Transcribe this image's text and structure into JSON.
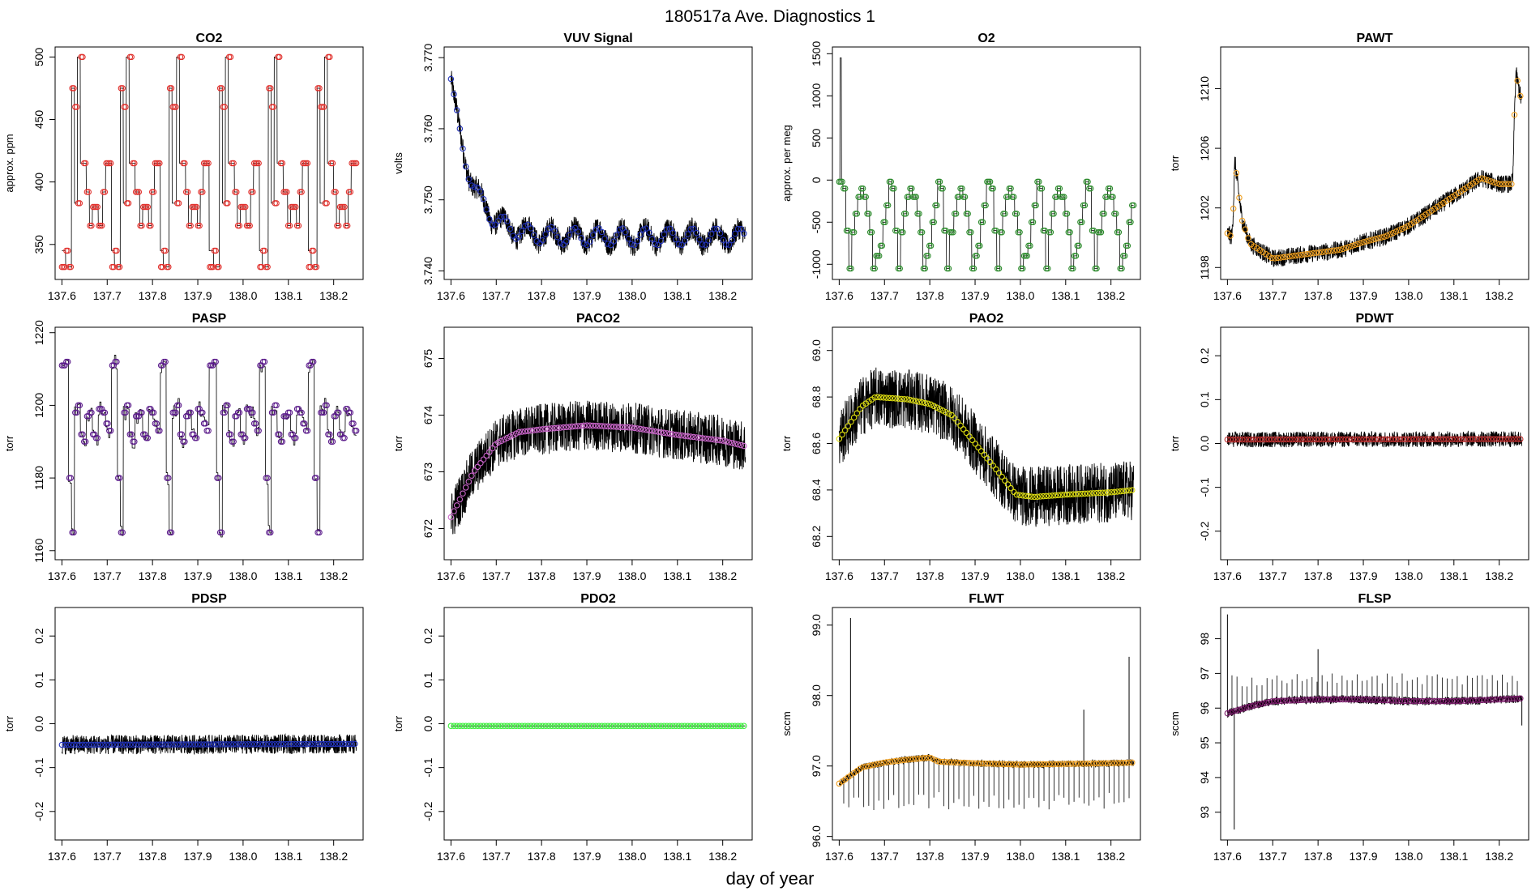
{
  "figure": {
    "title": "180517a   Ave. Diagnostics 1",
    "xlabel": "day of year"
  },
  "chart_data": [
    {
      "type": "line",
      "title": "CO2",
      "ylabel": "approx. ppm",
      "xlim": [
        137.585,
        138.265
      ],
      "ylim": [
        322,
        508
      ],
      "xticks": [
        "137.6",
        "137.7",
        "137.8",
        "137.9",
        "138.0",
        "138.1",
        "138.2"
      ],
      "yticks": [
        "350",
        "400",
        "450",
        "500"
      ],
      "marker_color": "#e0302c",
      "pattern": "cycle",
      "cycle": [
        345,
        332,
        332,
        475,
        383,
        500,
        415,
        415,
        392,
        365,
        380,
        380,
        365,
        392,
        415,
        415
      ],
      "avg": [
        332,
        345,
        332,
        475,
        460,
        383,
        500,
        415,
        392,
        365,
        380,
        380,
        365,
        392,
        415,
        415
      ]
    },
    {
      "type": "line",
      "title": "VUV Signal",
      "ylabel": "volts",
      "xlim": [
        137.585,
        138.265
      ],
      "ylim": [
        3.7388,
        3.7715
      ],
      "xticks": [
        "137.6",
        "137.7",
        "137.8",
        "137.9",
        "138.0",
        "138.1",
        "138.2"
      ],
      "yticks": [
        "3.740",
        "3.750",
        "3.760",
        "3.770"
      ],
      "marker_color": "#2233bb",
      "pattern": "decay",
      "start": 3.767,
      "baseline": 3.7448,
      "tau": 0.045,
      "osc": 0.0012,
      "noise": 0.0016
    },
    {
      "type": "line",
      "title": "O2",
      "ylabel": "approx. per meg",
      "xlim": [
        137.585,
        138.265
      ],
      "ylim": [
        -1180,
        1580
      ],
      "xticks": [
        "137.6",
        "137.7",
        "137.8",
        "137.9",
        "138.0",
        "138.1",
        "138.2"
      ],
      "yticks": [
        "-1000",
        "-500",
        "0",
        "500",
        "1000",
        "1500"
      ],
      "marker_color": "#2c8a2c",
      "pattern": "cycle",
      "spike": 1450,
      "cycle": [
        -20,
        -100,
        -600,
        -1050,
        -620,
        -400,
        -200,
        -100,
        -200,
        -400,
        -620,
        -1050,
        -900,
        -780,
        -500,
        -300
      ]
    },
    {
      "type": "line",
      "title": "PAWT",
      "ylabel": "torr",
      "xlim": [
        137.585,
        138.265
      ],
      "ylim": [
        1197.2,
        1212.8
      ],
      "xticks": [
        "137.6",
        "137.7",
        "137.8",
        "137.9",
        "138.0",
        "138.1",
        "138.2"
      ],
      "yticks": [
        "1198",
        "1202",
        "1206",
        "1210"
      ],
      "marker_color": "#f0a020",
      "pattern": "curve",
      "points": [
        [
          137.6,
          1200.3
        ],
        [
          137.612,
          1200.0
        ],
        [
          137.615,
          1205.5
        ],
        [
          137.632,
          1201.2
        ],
        [
          137.65,
          1199.6
        ],
        [
          137.7,
          1198.6
        ],
        [
          137.75,
          1198.8
        ],
        [
          137.8,
          1199.0
        ],
        [
          137.85,
          1199.2
        ],
        [
          137.9,
          1199.7
        ],
        [
          137.95,
          1200.1
        ],
        [
          138.0,
          1200.8
        ],
        [
          138.05,
          1201.8
        ],
        [
          138.1,
          1202.8
        ],
        [
          138.14,
          1203.6
        ],
        [
          138.16,
          1204.0
        ],
        [
          138.2,
          1203.6
        ],
        [
          138.23,
          1203.6
        ],
        [
          138.236,
          1211.2
        ],
        [
          138.25,
          1209.0
        ]
      ],
      "noise": 0.6
    },
    {
      "type": "line",
      "title": "PASP",
      "ylabel": "torr",
      "xlim": [
        137.585,
        138.265
      ],
      "ylim": [
        1157.5,
        1221.5
      ],
      "xticks": [
        "137.6",
        "137.7",
        "137.8",
        "137.9",
        "138.0",
        "138.1",
        "138.2"
      ],
      "yticks": [
        "1160",
        "1180",
        "1200",
        "1220"
      ],
      "marker_color": "#5a1a8a",
      "pattern": "cycle",
      "cycle": [
        1211,
        1212,
        1180,
        1165,
        1198,
        1200,
        1192,
        1190,
        1197,
        1198,
        1192,
        1191,
        1199,
        1198,
        1195,
        1193
      ],
      "noise": 4
    },
    {
      "type": "line",
      "title": "PACO2",
      "ylabel": "torr",
      "xlim": [
        137.585,
        138.265
      ],
      "ylim": [
        671.45,
        675.55
      ],
      "xticks": [
        "137.6",
        "137.7",
        "137.8",
        "137.9",
        "138.0",
        "138.1",
        "138.2"
      ],
      "yticks": [
        "672",
        "673",
        "674",
        "675"
      ],
      "marker_color": "#cc66cc",
      "pattern": "curve",
      "points": [
        [
          137.6,
          672.2
        ],
        [
          137.65,
          673.0
        ],
        [
          137.7,
          673.5
        ],
        [
          137.75,
          673.7
        ],
        [
          137.8,
          673.75
        ],
        [
          137.9,
          673.82
        ],
        [
          138.0,
          673.78
        ],
        [
          138.1,
          673.65
        ],
        [
          138.2,
          673.55
        ],
        [
          138.25,
          673.45
        ]
      ],
      "noise": 0.45
    },
    {
      "type": "line",
      "title": "PAO2",
      "ylabel": "torr",
      "xlim": [
        137.585,
        138.265
      ],
      "ylim": [
        68.1,
        69.1
      ],
      "xticks": [
        "137.6",
        "137.7",
        "137.8",
        "137.9",
        "138.0",
        "138.1",
        "138.2"
      ],
      "yticks": [
        "68.2",
        "68.4",
        "68.6",
        "68.8",
        "69.0"
      ],
      "marker_color": "#dddd11",
      "pattern": "curve",
      "points": [
        [
          137.6,
          68.62
        ],
        [
          137.65,
          68.76
        ],
        [
          137.68,
          68.8
        ],
        [
          137.75,
          68.79
        ],
        [
          137.8,
          68.77
        ],
        [
          137.85,
          68.72
        ],
        [
          137.9,
          68.6
        ],
        [
          137.95,
          68.48
        ],
        [
          137.99,
          68.38
        ],
        [
          138.03,
          68.37
        ],
        [
          138.1,
          68.38
        ],
        [
          138.2,
          68.39
        ],
        [
          138.25,
          68.4
        ]
      ],
      "noise": 0.13
    },
    {
      "type": "line",
      "title": "PDWT",
      "ylabel": "torr",
      "xlim": [
        137.585,
        138.265
      ],
      "ylim": [
        -0.265,
        0.265
      ],
      "xticks": [
        "137.6",
        "137.7",
        "137.8",
        "137.9",
        "138.0",
        "138.1",
        "138.2"
      ],
      "yticks": [
        "-0.2",
        "-0.1",
        "0.0",
        "0.1",
        "0.2"
      ],
      "marker_color": "#c03030",
      "pattern": "curve",
      "points": [
        [
          137.6,
          0.009
        ],
        [
          138.25,
          0.01
        ]
      ],
      "noise": 0.018
    },
    {
      "type": "line",
      "title": "PDSP",
      "ylabel": "torr",
      "xlim": [
        137.585,
        138.265
      ],
      "ylim": [
        -0.265,
        0.265
      ],
      "xticks": [
        "137.6",
        "137.7",
        "137.8",
        "137.9",
        "138.0",
        "138.1",
        "138.2"
      ],
      "yticks": [
        "-0.2",
        "-0.1",
        "0.0",
        "0.1",
        "0.2"
      ],
      "marker_color": "#2233bb",
      "pattern": "curve",
      "points": [
        [
          137.6,
          -0.048
        ],
        [
          138.25,
          -0.046
        ]
      ],
      "noise": 0.022
    },
    {
      "type": "line",
      "title": "PDO2",
      "ylabel": "torr",
      "xlim": [
        137.585,
        138.265
      ],
      "ylim": [
        -0.265,
        0.265
      ],
      "xticks": [
        "137.6",
        "137.7",
        "137.8",
        "137.9",
        "138.0",
        "138.1",
        "138.2"
      ],
      "yticks": [
        "-0.2",
        "-0.1",
        "0.0",
        "0.1",
        "0.2"
      ],
      "marker_color": "#33ee33",
      "pattern": "curve",
      "points": [
        [
          137.6,
          -0.005
        ],
        [
          138.25,
          -0.005
        ]
      ],
      "noise": 0.0
    },
    {
      "type": "line",
      "title": "FLWT",
      "ylabel": "sccm",
      "xlim": [
        137.585,
        138.265
      ],
      "ylim": [
        95.95,
        99.25
      ],
      "xticks": [
        "137.6",
        "137.7",
        "137.8",
        "137.9",
        "138.0",
        "138.1",
        "138.2"
      ],
      "yticks": [
        "96.0",
        "97.0",
        "98.0",
        "99.0"
      ],
      "marker_color": "#f0a020",
      "pattern": "curve",
      "points": [
        [
          137.6,
          96.75
        ],
        [
          137.65,
          96.98
        ],
        [
          137.7,
          97.05
        ],
        [
          137.75,
          97.09
        ],
        [
          137.8,
          97.12
        ],
        [
          137.82,
          97.06
        ],
        [
          137.9,
          97.04
        ],
        [
          138.0,
          97.02
        ],
        [
          138.1,
          97.03
        ],
        [
          138.2,
          97.04
        ],
        [
          138.25,
          97.05
        ]
      ],
      "noise": 0.05,
      "down_spikes": 96.35,
      "spikes": [
        [
          137.625,
          99.1
        ],
        [
          138.24,
          98.55
        ],
        [
          138.14,
          97.8
        ]
      ]
    },
    {
      "type": "line",
      "title": "FLSP",
      "ylabel": "sccm",
      "xlim": [
        137.585,
        138.265
      ],
      "ylim": [
        92.2,
        98.9
      ],
      "xticks": [
        "137.6",
        "137.7",
        "137.8",
        "137.9",
        "138.0",
        "138.1",
        "138.2"
      ],
      "yticks": [
        "93",
        "94",
        "95",
        "96",
        "97",
        "98"
      ],
      "marker_color": "#7a1a6a",
      "pattern": "curve",
      "points": [
        [
          137.6,
          95.85
        ],
        [
          137.65,
          96.05
        ],
        [
          137.7,
          96.2
        ],
        [
          137.8,
          96.25
        ],
        [
          137.9,
          96.25
        ],
        [
          138.0,
          96.2
        ],
        [
          138.1,
          96.2
        ],
        [
          138.2,
          96.25
        ],
        [
          138.25,
          96.28
        ]
      ],
      "noise": 0.12,
      "up_spikes": 97.0,
      "spikes": [
        [
          137.6,
          98.7
        ],
        [
          137.615,
          92.5
        ],
        [
          137.8,
          97.7
        ],
        [
          138.25,
          95.5
        ]
      ]
    }
  ]
}
